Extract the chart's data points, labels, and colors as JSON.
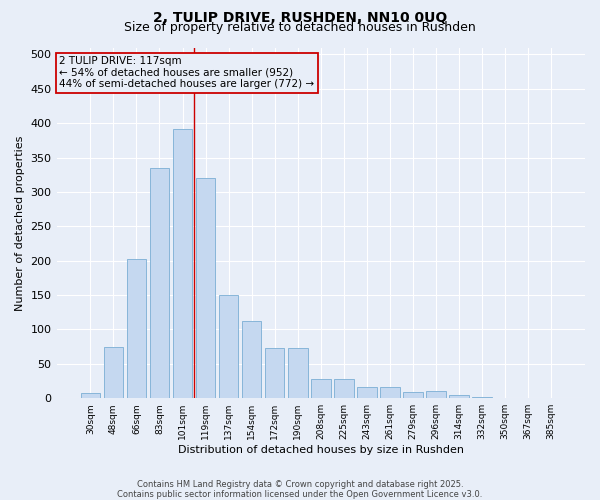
{
  "title": "2, TULIP DRIVE, RUSHDEN, NN10 0UQ",
  "subtitle": "Size of property relative to detached houses in Rushden",
  "xlabel": "Distribution of detached houses by size in Rushden",
  "ylabel": "Number of detached properties",
  "footer_line1": "Contains HM Land Registry data © Crown copyright and database right 2025.",
  "footer_line2": "Contains public sector information licensed under the Open Government Licence v3.0.",
  "categories": [
    "30sqm",
    "48sqm",
    "66sqm",
    "83sqm",
    "101sqm",
    "119sqm",
    "137sqm",
    "154sqm",
    "172sqm",
    "190sqm",
    "208sqm",
    "225sqm",
    "243sqm",
    "261sqm",
    "279sqm",
    "296sqm",
    "314sqm",
    "332sqm",
    "350sqm",
    "367sqm",
    "385sqm"
  ],
  "values": [
    7,
    75,
    203,
    335,
    392,
    320,
    150,
    112,
    73,
    73,
    28,
    28,
    16,
    17,
    9,
    10,
    5,
    2,
    1,
    1,
    1
  ],
  "bar_color": "#c5d8f0",
  "bar_edge_color": "#7aaed4",
  "background_color": "#e8eef8",
  "grid_color": "#ffffff",
  "vline_x": 4.5,
  "vline_color": "#cc0000",
  "annotation_line1": "2 TULIP DRIVE: 117sqm",
  "annotation_line2": "← 54% of detached houses are smaller (952)",
  "annotation_line3": "44% of semi-detached houses are larger (772) →",
  "annotation_box_color": "#cc0000",
  "ylim": [
    0,
    510
  ],
  "yticks": [
    0,
    50,
    100,
    150,
    200,
    250,
    300,
    350,
    400,
    450,
    500
  ]
}
